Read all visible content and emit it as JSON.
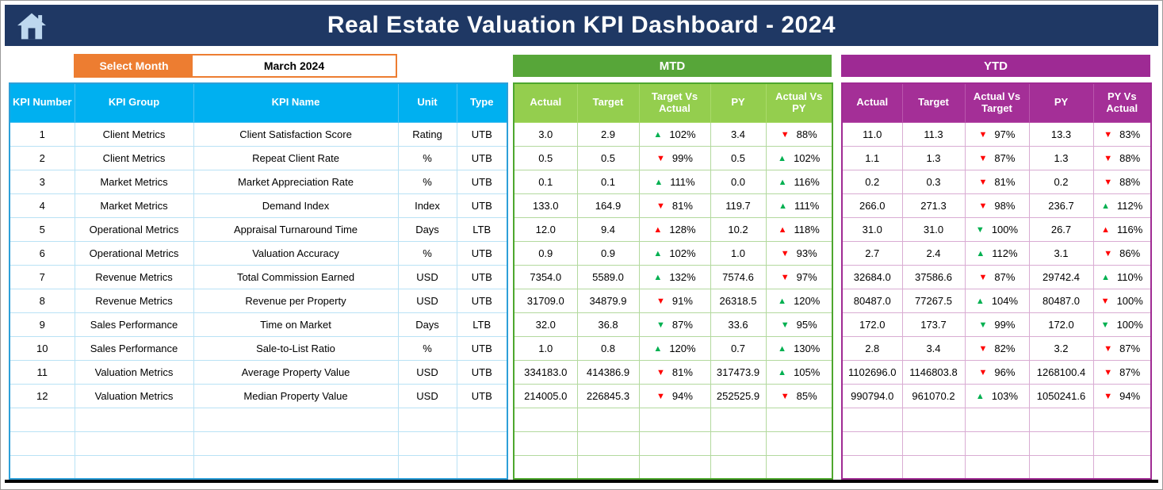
{
  "header": {
    "title": "Real Estate Valuation KPI Dashboard - 2024",
    "bg_color": "#1F3864"
  },
  "month_selector": {
    "label": "Select Month",
    "value": "March 2024",
    "accent_color": "#ED7D31"
  },
  "sections": {
    "mtd": {
      "label": "MTD",
      "color": "#57A639",
      "headers": [
        "Actual",
        "Target",
        "Target Vs Actual",
        "PY",
        "Actual Vs PY"
      ]
    },
    "ytd": {
      "label": "YTD",
      "color": "#9E2A94",
      "headers": [
        "Actual",
        "Target",
        "Actual Vs Target",
        "PY",
        "PY Vs Actual"
      ]
    }
  },
  "kpi_table": {
    "headers": [
      "KPI Number",
      "KPI Group",
      "KPI Name",
      "Unit",
      "Type"
    ],
    "header_color": "#00B0F0"
  },
  "trend_colors": {
    "green": "#00B050",
    "red": "#FF0000"
  },
  "empty_rows": 3,
  "rows": [
    {
      "n": "1",
      "group": "Client Metrics",
      "name": "Client Satisfaction Score",
      "unit": "Rating",
      "type": "UTB",
      "mtd": {
        "actual": "3.0",
        "target": "2.9",
        "target_vs_actual": {
          "dir": "up",
          "color": "green",
          "pct": "102%"
        },
        "py": "3.4",
        "actual_vs_py": {
          "dir": "down",
          "color": "red",
          "pct": "88%"
        }
      },
      "ytd": {
        "actual": "11.0",
        "target": "11.3",
        "actual_vs_target": {
          "dir": "down",
          "color": "red",
          "pct": "97%"
        },
        "py": "13.3",
        "py_vs_actual": {
          "dir": "down",
          "color": "red",
          "pct": "83%"
        }
      }
    },
    {
      "n": "2",
      "group": "Client Metrics",
      "name": "Repeat Client Rate",
      "unit": "%",
      "type": "UTB",
      "mtd": {
        "actual": "0.5",
        "target": "0.5",
        "target_vs_actual": {
          "dir": "down",
          "color": "red",
          "pct": "99%"
        },
        "py": "0.5",
        "actual_vs_py": {
          "dir": "up",
          "color": "green",
          "pct": "102%"
        }
      },
      "ytd": {
        "actual": "1.1",
        "target": "1.3",
        "actual_vs_target": {
          "dir": "down",
          "color": "red",
          "pct": "87%"
        },
        "py": "1.3",
        "py_vs_actual": {
          "dir": "down",
          "color": "red",
          "pct": "88%"
        }
      }
    },
    {
      "n": "3",
      "group": "Market Metrics",
      "name": "Market Appreciation Rate",
      "unit": "%",
      "type": "UTB",
      "mtd": {
        "actual": "0.1",
        "target": "0.1",
        "target_vs_actual": {
          "dir": "up",
          "color": "green",
          "pct": "111%"
        },
        "py": "0.0",
        "actual_vs_py": {
          "dir": "up",
          "color": "green",
          "pct": "116%"
        }
      },
      "ytd": {
        "actual": "0.2",
        "target": "0.3",
        "actual_vs_target": {
          "dir": "down",
          "color": "red",
          "pct": "81%"
        },
        "py": "0.2",
        "py_vs_actual": {
          "dir": "down",
          "color": "red",
          "pct": "88%"
        }
      }
    },
    {
      "n": "4",
      "group": "Market Metrics",
      "name": "Demand Index",
      "unit": "Index",
      "type": "UTB",
      "mtd": {
        "actual": "133.0",
        "target": "164.9",
        "target_vs_actual": {
          "dir": "down",
          "color": "red",
          "pct": "81%"
        },
        "py": "119.7",
        "actual_vs_py": {
          "dir": "up",
          "color": "green",
          "pct": "111%"
        }
      },
      "ytd": {
        "actual": "266.0",
        "target": "271.3",
        "actual_vs_target": {
          "dir": "down",
          "color": "red",
          "pct": "98%"
        },
        "py": "236.7",
        "py_vs_actual": {
          "dir": "up",
          "color": "green",
          "pct": "112%"
        }
      }
    },
    {
      "n": "5",
      "group": "Operational Metrics",
      "name": "Appraisal Turnaround Time",
      "unit": "Days",
      "type": "LTB",
      "mtd": {
        "actual": "12.0",
        "target": "9.4",
        "target_vs_actual": {
          "dir": "up",
          "color": "red",
          "pct": "128%"
        },
        "py": "10.2",
        "actual_vs_py": {
          "dir": "up",
          "color": "red",
          "pct": "118%"
        }
      },
      "ytd": {
        "actual": "31.0",
        "target": "31.0",
        "actual_vs_target": {
          "dir": "down",
          "color": "green",
          "pct": "100%"
        },
        "py": "26.7",
        "py_vs_actual": {
          "dir": "up",
          "color": "red",
          "pct": "116%"
        }
      }
    },
    {
      "n": "6",
      "group": "Operational Metrics",
      "name": "Valuation Accuracy",
      "unit": "%",
      "type": "UTB",
      "mtd": {
        "actual": "0.9",
        "target": "0.9",
        "target_vs_actual": {
          "dir": "up",
          "color": "green",
          "pct": "102%"
        },
        "py": "1.0",
        "actual_vs_py": {
          "dir": "down",
          "color": "red",
          "pct": "93%"
        }
      },
      "ytd": {
        "actual": "2.7",
        "target": "2.4",
        "actual_vs_target": {
          "dir": "up",
          "color": "green",
          "pct": "112%"
        },
        "py": "3.1",
        "py_vs_actual": {
          "dir": "down",
          "color": "red",
          "pct": "86%"
        }
      }
    },
    {
      "n": "7",
      "group": "Revenue Metrics",
      "name": "Total Commission Earned",
      "unit": "USD",
      "type": "UTB",
      "mtd": {
        "actual": "7354.0",
        "target": "5589.0",
        "target_vs_actual": {
          "dir": "up",
          "color": "green",
          "pct": "132%"
        },
        "py": "7574.6",
        "actual_vs_py": {
          "dir": "down",
          "color": "red",
          "pct": "97%"
        }
      },
      "ytd": {
        "actual": "32684.0",
        "target": "37586.6",
        "actual_vs_target": {
          "dir": "down",
          "color": "red",
          "pct": "87%"
        },
        "py": "29742.4",
        "py_vs_actual": {
          "dir": "up",
          "color": "green",
          "pct": "110%"
        }
      }
    },
    {
      "n": "8",
      "group": "Revenue Metrics",
      "name": "Revenue per Property",
      "unit": "USD",
      "type": "UTB",
      "mtd": {
        "actual": "31709.0",
        "target": "34879.9",
        "target_vs_actual": {
          "dir": "down",
          "color": "red",
          "pct": "91%"
        },
        "py": "26318.5",
        "actual_vs_py": {
          "dir": "up",
          "color": "green",
          "pct": "120%"
        }
      },
      "ytd": {
        "actual": "80487.0",
        "target": "77267.5",
        "actual_vs_target": {
          "dir": "up",
          "color": "green",
          "pct": "104%"
        },
        "py": "80487.0",
        "py_vs_actual": {
          "dir": "down",
          "color": "red",
          "pct": "100%"
        }
      }
    },
    {
      "n": "9",
      "group": "Sales Performance",
      "name": "Time on Market",
      "unit": "Days",
      "type": "LTB",
      "mtd": {
        "actual": "32.0",
        "target": "36.8",
        "target_vs_actual": {
          "dir": "down",
          "color": "green",
          "pct": "87%"
        },
        "py": "33.6",
        "actual_vs_py": {
          "dir": "down",
          "color": "green",
          "pct": "95%"
        }
      },
      "ytd": {
        "actual": "172.0",
        "target": "173.7",
        "actual_vs_target": {
          "dir": "down",
          "color": "green",
          "pct": "99%"
        },
        "py": "172.0",
        "py_vs_actual": {
          "dir": "down",
          "color": "green",
          "pct": "100%"
        }
      }
    },
    {
      "n": "10",
      "group": "Sales Performance",
      "name": "Sale-to-List Ratio",
      "unit": "%",
      "type": "UTB",
      "mtd": {
        "actual": "1.0",
        "target": "0.8",
        "target_vs_actual": {
          "dir": "up",
          "color": "green",
          "pct": "120%"
        },
        "py": "0.7",
        "actual_vs_py": {
          "dir": "up",
          "color": "green",
          "pct": "130%"
        }
      },
      "ytd": {
        "actual": "2.8",
        "target": "3.4",
        "actual_vs_target": {
          "dir": "down",
          "color": "red",
          "pct": "82%"
        },
        "py": "3.2",
        "py_vs_actual": {
          "dir": "down",
          "color": "red",
          "pct": "87%"
        }
      }
    },
    {
      "n": "11",
      "group": "Valuation Metrics",
      "name": "Average Property Value",
      "unit": "USD",
      "type": "UTB",
      "mtd": {
        "actual": "334183.0",
        "target": "414386.9",
        "target_vs_actual": {
          "dir": "down",
          "color": "red",
          "pct": "81%"
        },
        "py": "317473.9",
        "actual_vs_py": {
          "dir": "up",
          "color": "green",
          "pct": "105%"
        }
      },
      "ytd": {
        "actual": "1102696.0",
        "target": "1146803.8",
        "actual_vs_target": {
          "dir": "down",
          "color": "red",
          "pct": "96%"
        },
        "py": "1268100.4",
        "py_vs_actual": {
          "dir": "down",
          "color": "red",
          "pct": "87%"
        }
      }
    },
    {
      "n": "12",
      "group": "Valuation Metrics",
      "name": "Median Property Value",
      "unit": "USD",
      "type": "UTB",
      "mtd": {
        "actual": "214005.0",
        "target": "226845.3",
        "target_vs_actual": {
          "dir": "down",
          "color": "red",
          "pct": "94%"
        },
        "py": "252525.9",
        "actual_vs_py": {
          "dir": "down",
          "color": "red",
          "pct": "85%"
        }
      },
      "ytd": {
        "actual": "990794.0",
        "target": "961070.2",
        "actual_vs_target": {
          "dir": "up",
          "color": "green",
          "pct": "103%"
        },
        "py": "1050241.6",
        "py_vs_actual": {
          "dir": "down",
          "color": "red",
          "pct": "94%"
        }
      }
    }
  ]
}
